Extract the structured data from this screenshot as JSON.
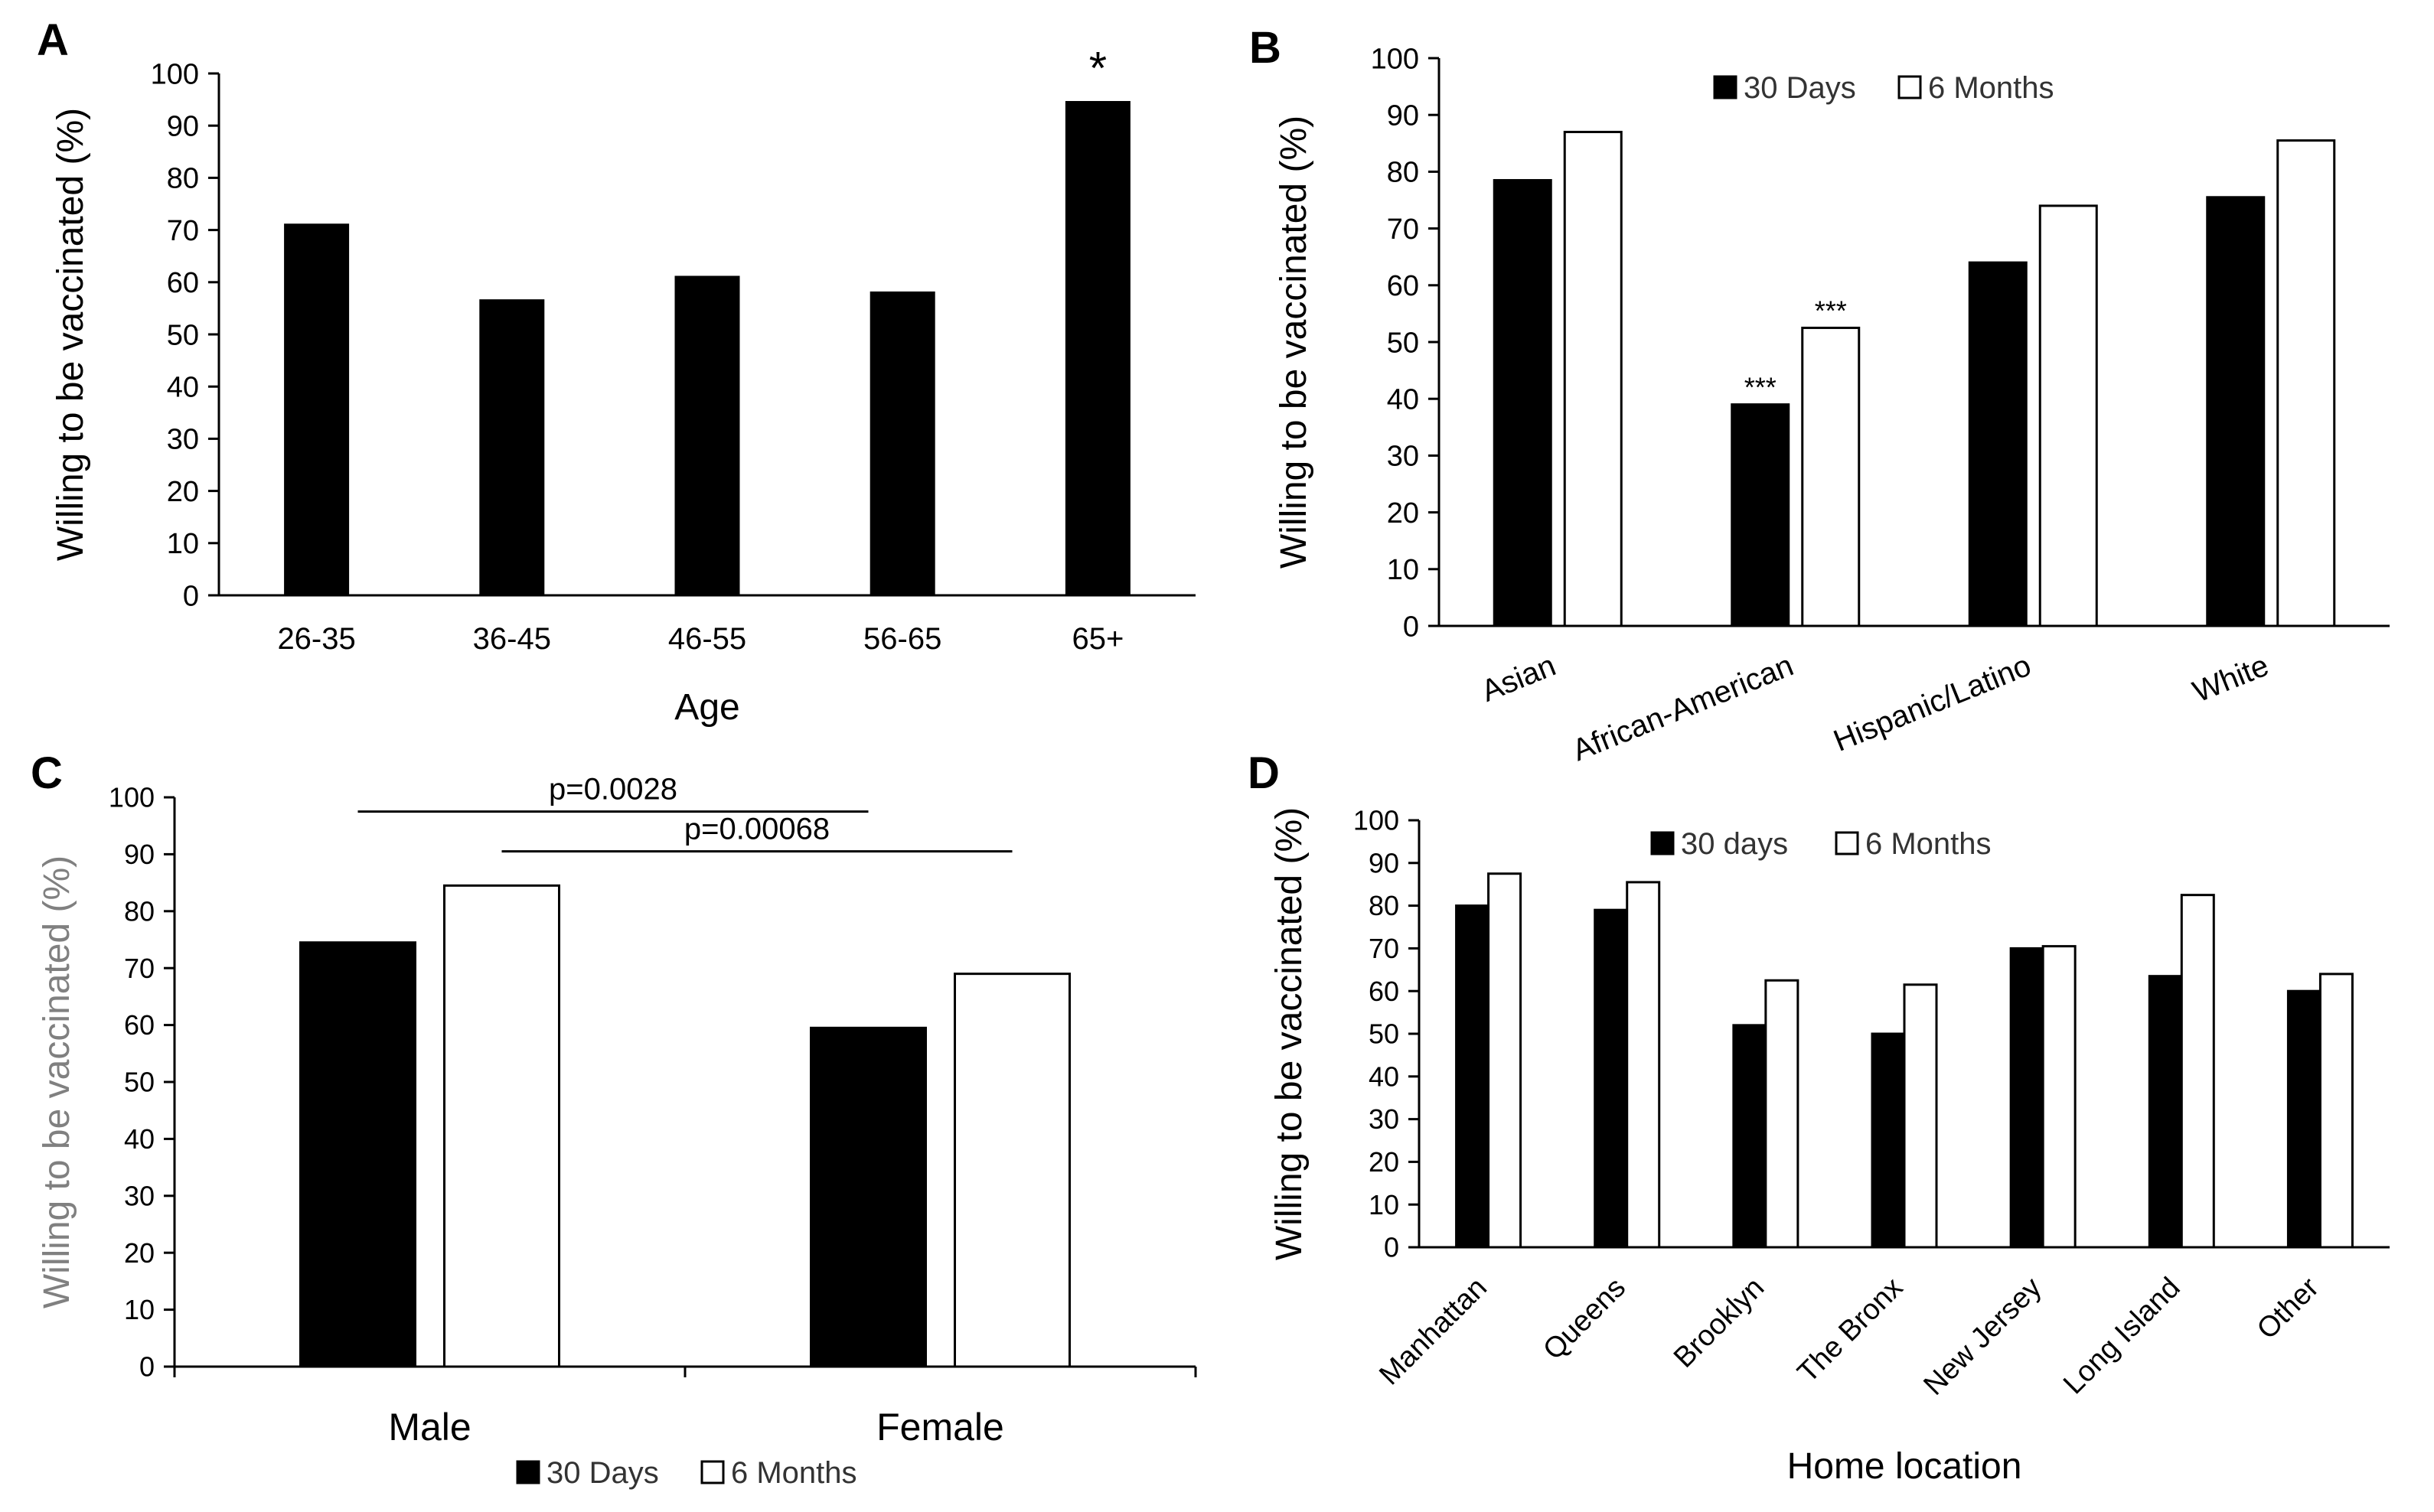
{
  "chart_data": [
    {
      "panel": "A",
      "type": "bar",
      "xlabel": "Age",
      "ylabel": "Willing to be vaccinated (%)",
      "ylim": [
        0,
        100
      ],
      "yticks": [
        0,
        10,
        20,
        30,
        40,
        50,
        60,
        70,
        80,
        90,
        100
      ],
      "categories": [
        "26-35",
        "36-45",
        "46-55",
        "56-65",
        "65+"
      ],
      "series": [
        {
          "name": "",
          "values": [
            71,
            56.5,
            61,
            58,
            94.5
          ],
          "color": "#000000"
        }
      ],
      "annotations": [
        {
          "category": "65+",
          "text": "*"
        }
      ]
    },
    {
      "panel": "B",
      "type": "bar",
      "xlabel": "",
      "ylabel": "Willing to be vaccinated (%)",
      "ylim": [
        0,
        100
      ],
      "yticks": [
        0,
        10,
        20,
        30,
        40,
        50,
        60,
        70,
        80,
        90,
        100
      ],
      "categories": [
        "Asian",
        "African-American",
        "Hispanic/Latino",
        "White"
      ],
      "series": [
        {
          "name": "30 Days",
          "values": [
            78.5,
            39,
            64,
            75.5
          ],
          "color": "#000000"
        },
        {
          "name": "6 Months",
          "values": [
            87,
            52.5,
            74,
            85.5
          ],
          "color": "#ffffff"
        }
      ],
      "legend": "top-center",
      "annotations": [
        {
          "category": "African-American",
          "series": "30 Days",
          "text": "***"
        },
        {
          "category": "African-American",
          "series": "6 Months",
          "text": "***"
        }
      ]
    },
    {
      "panel": "C",
      "type": "bar",
      "xlabel": "",
      "ylabel": "Willing to be vaccinated (%)",
      "ylim": [
        0,
        100
      ],
      "yticks": [
        0,
        10,
        20,
        30,
        40,
        50,
        60,
        70,
        80,
        90,
        100
      ],
      "categories": [
        "Male",
        "Female"
      ],
      "series": [
        {
          "name": "30 Days",
          "values": [
            74.5,
            59.5
          ],
          "color": "#000000"
        },
        {
          "name": "6 Months",
          "values": [
            84.5,
            69
          ],
          "color": "#ffffff"
        }
      ],
      "legend": "bottom-center",
      "annotations": [
        {
          "text": "p=0.0028",
          "from": [
            "Male",
            "30 Days"
          ],
          "to": [
            "Female",
            "30 Days"
          ]
        },
        {
          "text": "p=0.00068",
          "from": [
            "Male",
            "6 Months"
          ],
          "to": [
            "Female",
            "6 Months"
          ]
        }
      ]
    },
    {
      "panel": "D",
      "type": "bar",
      "xlabel": "Home location",
      "ylabel": "Willing to be vaccinated (%)",
      "ylim": [
        0,
        100
      ],
      "yticks": [
        0,
        10,
        20,
        30,
        40,
        50,
        60,
        70,
        80,
        90,
        100
      ],
      "categories": [
        "Manhattan",
        "Queens",
        "Brooklyn",
        "The Bronx",
        "New Jersey",
        "Long Island",
        "Other"
      ],
      "series": [
        {
          "name": "30 days",
          "values": [
            80,
            79,
            52,
            50,
            70,
            63.5,
            60
          ],
          "color": "#000000"
        },
        {
          "name": "6 Months",
          "values": [
            87.5,
            85.5,
            62.5,
            61.5,
            70.5,
            82.5,
            64
          ],
          "color": "#ffffff"
        }
      ],
      "legend": "top-center"
    }
  ]
}
